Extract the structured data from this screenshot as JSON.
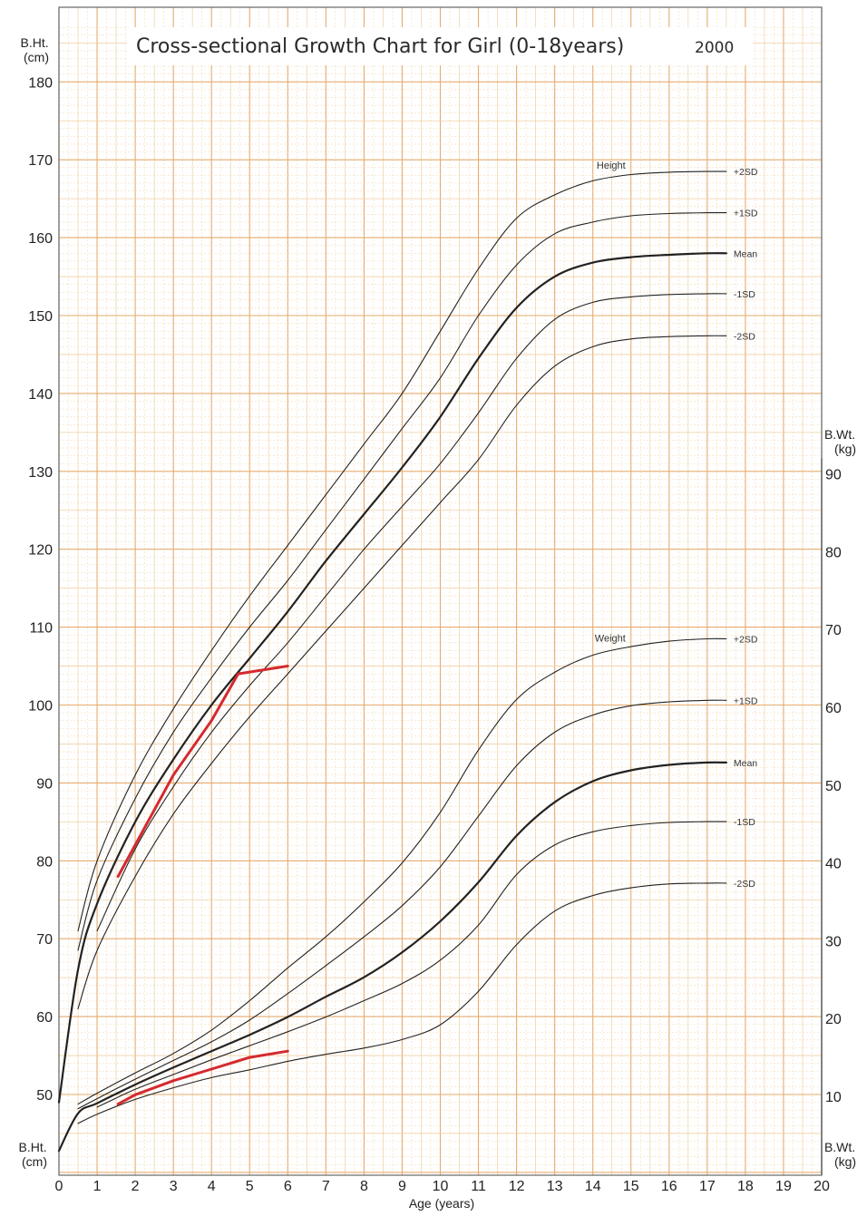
{
  "chart_data": {
    "type": "line",
    "title": "Cross-sectional Growth Chart for Girl (0-18years)",
    "title_year": "2000",
    "x_axis": {
      "label": "Age (years)",
      "ticks": [
        "0",
        "1",
        "2",
        "3",
        "4",
        "5",
        "6",
        "7",
        "8",
        "9",
        "10",
        "11",
        "12",
        "13",
        "14",
        "15",
        "16",
        "17",
        "18",
        "19",
        "20"
      ],
      "range": [
        0,
        20
      ]
    },
    "left_axis": {
      "label_top": "B.Ht.\n(cm)",
      "label_bottom": "B.Ht.\n(cm)",
      "ticks": [
        "50",
        "60",
        "70",
        "80",
        "90",
        "100",
        "110",
        "120",
        "130",
        "140",
        "150",
        "160",
        "170",
        "180"
      ],
      "range": [
        40,
        187
      ]
    },
    "right_axis": {
      "label_top": "B.Wt.\n(kg)",
      "label_bottom": "B.Wt.\n(kg)",
      "ticks": [
        "10",
        "20",
        "30",
        "40",
        "50",
        "60",
        "70",
        "80",
        "90"
      ],
      "range": [
        0,
        92
      ]
    },
    "groups": {
      "height_label": "Height",
      "weight_label": "Weight"
    },
    "grid": true,
    "height_series": [
      {
        "name": "+2SD",
        "x": [
          0.5,
          1,
          2,
          3,
          4,
          5,
          6,
          7,
          8,
          9,
          10,
          11,
          12,
          13,
          14,
          15,
          16,
          17,
          17.5
        ],
        "y": [
          71,
          80,
          91,
          99.5,
          107,
          114,
          120.5,
          127,
          133.5,
          140,
          148,
          156,
          162.5,
          165.5,
          167.3,
          168.1,
          168.4,
          168.5,
          168.5
        ]
      },
      {
        "name": "+1SD",
        "x": [
          0.5,
          1,
          2,
          3,
          4,
          5,
          6,
          7,
          8,
          9,
          10,
          11,
          12,
          13,
          14,
          15,
          16,
          17,
          17.5
        ],
        "y": [
          68.5,
          77.5,
          88,
          96.5,
          103.5,
          110,
          116,
          122.5,
          129,
          135.5,
          142,
          150,
          156.5,
          160.5,
          162,
          162.8,
          163.1,
          163.2,
          163.2
        ]
      },
      {
        "name": "Mean",
        "x": [
          0,
          0.5,
          1,
          2,
          3,
          4,
          5,
          6,
          7,
          8,
          9,
          10,
          11,
          12,
          13,
          14,
          15,
          16,
          17,
          17.5
        ],
        "y": [
          49,
          66,
          74.5,
          85,
          93,
          100,
          106,
          112,
          118.5,
          124.5,
          130.5,
          137,
          144.5,
          151,
          155,
          156.8,
          157.5,
          157.8,
          158,
          158
        ]
      },
      {
        "name": "-1SD",
        "x": [
          1,
          2,
          3,
          4,
          5,
          6,
          7,
          8,
          9,
          10,
          11,
          12,
          13,
          14,
          15,
          16,
          17,
          17.5
        ],
        "y": [
          71,
          81.5,
          89.5,
          96.5,
          102.5,
          108,
          114,
          120,
          125.5,
          131,
          137.5,
          144.5,
          149.5,
          151.7,
          152.4,
          152.7,
          152.8,
          152.8
        ]
      },
      {
        "name": "-2SD",
        "x": [
          0.5,
          1,
          2,
          3,
          4,
          5,
          6,
          7,
          8,
          9,
          10,
          11,
          12,
          13,
          14,
          15,
          16,
          17,
          17.5
        ],
        "y": [
          61,
          68.5,
          78,
          86,
          92.5,
          98.5,
          104,
          109.5,
          115,
          120.5,
          126,
          131.5,
          138.5,
          143.5,
          146,
          147,
          147.3,
          147.4,
          147.4
        ]
      }
    ],
    "weight_series": [
      {
        "name": "+2SD",
        "x": [
          0.5,
          1,
          2,
          3,
          4,
          5,
          6,
          7,
          8,
          9,
          10,
          11,
          12,
          13,
          14,
          15,
          16,
          17,
          17.5
        ],
        "y": [
          9,
          10.4,
          13,
          15.5,
          18.5,
          22.3,
          26.5,
          30.5,
          35,
          40,
          46.5,
          54.5,
          61,
          64.5,
          66.7,
          67.8,
          68.5,
          68.8,
          68.8
        ]
      },
      {
        "name": "+1SD",
        "x": [
          0.5,
          1,
          2,
          3,
          4,
          5,
          6,
          7,
          8,
          9,
          10,
          11,
          12,
          13,
          14,
          15,
          16,
          17,
          17.5
        ],
        "y": [
          8.4,
          9.7,
          12.2,
          14.6,
          17,
          19.8,
          23.2,
          26.8,
          30.5,
          34.5,
          39.5,
          46,
          52.5,
          56.8,
          59,
          60.2,
          60.7,
          60.9,
          60.9
        ]
      },
      {
        "name": "Mean",
        "x": [
          0,
          0.5,
          1,
          2,
          3,
          4,
          5,
          6,
          7,
          8,
          9,
          10,
          11,
          12,
          13,
          14,
          15,
          16,
          17,
          17.5
        ],
        "y": [
          3,
          7.8,
          9.1,
          11.5,
          13.7,
          15.8,
          17.9,
          20.2,
          22.8,
          25.3,
          28.5,
          32.5,
          37.5,
          43.5,
          47.8,
          50.5,
          51.9,
          52.6,
          52.9,
          52.9
        ]
      },
      {
        "name": "-1SD",
        "x": [
          1,
          2,
          3,
          4,
          5,
          6,
          7,
          8,
          9,
          10,
          11,
          12,
          13,
          14,
          15,
          16,
          17,
          17.5
        ],
        "y": [
          8.6,
          10.9,
          12.8,
          14.7,
          16.5,
          18.3,
          20.2,
          22.3,
          24.5,
          27.5,
          32,
          38.5,
          42.3,
          44,
          44.8,
          45.2,
          45.3,
          45.3
        ]
      },
      {
        "name": "-2SD",
        "x": [
          0.5,
          1,
          2,
          3,
          4,
          5,
          6,
          7,
          8,
          9,
          10,
          11,
          12,
          13,
          14,
          15,
          16,
          17,
          17.5
        ],
        "y": [
          6.5,
          7.7,
          9.6,
          11.1,
          12.4,
          13.4,
          14.5,
          15.4,
          16.2,
          17.3,
          19.2,
          23.5,
          29.5,
          33.8,
          35.8,
          36.8,
          37.3,
          37.4,
          37.4
        ]
      }
    ],
    "patient_height": {
      "x": [
        1.55,
        3,
        4,
        4.7,
        6
      ],
      "y": [
        78,
        91,
        98,
        104,
        105
      ]
    },
    "patient_weight": {
      "x": [
        1.55,
        2,
        3,
        4,
        5,
        6
      ],
      "y": [
        9,
        10.2,
        12,
        13.5,
        15,
        15.8
      ]
    },
    "colors": {
      "major_grid": "#e6ab6e",
      "minor_grid": "#f0cfa3",
      "frame": "#666666",
      "reference_curve": "#222222",
      "patient_line": "#d42a2f"
    }
  }
}
